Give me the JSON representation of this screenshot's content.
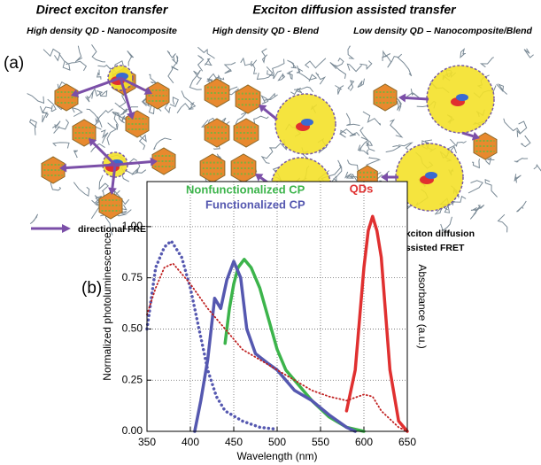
{
  "panel_a": {
    "label": "(a)",
    "headers": {
      "direct": "Direct exciton transfer",
      "diffusion": "Exciton diffusion assisted transfer"
    },
    "subheaders": [
      "High density QD - Nanocomposite",
      "High density QD - Blend",
      "Low density QD – Nanocomposite/Blend"
    ],
    "legend": {
      "directional": "directional FRET",
      "diffusion_line1": "exciton diffusion",
      "diffusion_line2": "assisted FRET"
    }
  },
  "panel_b": {
    "label": "(b)"
  },
  "chart_data": {
    "type": "line",
    "x_label": "Wavelength (nm)",
    "y_label": "Normalized photoluminescence",
    "y2_label": "Absorbance (a.u.)",
    "xlim": [
      350,
      650
    ],
    "xticks": [
      350,
      400,
      450,
      500,
      550,
      600,
      650
    ],
    "ylim": [
      0,
      1.22
    ],
    "yticks": [
      {
        "value": 0,
        "label": "0.00"
      },
      {
        "value": 0.25,
        "label": "0.25"
      },
      {
        "value": 0.5,
        "label": "0.50"
      },
      {
        "value": 0.75,
        "label": "0.75"
      },
      {
        "value": 1,
        "label": "1.00"
      }
    ],
    "grid": true,
    "series": [
      {
        "name": "Nonfunctionalized CP",
        "color": "#3cb44b",
        "style": "solid",
        "x": [
          440,
          445,
          450,
          455,
          462,
          470,
          480,
          490,
          500,
          510,
          520,
          540,
          560,
          580,
          600
        ],
        "values": [
          0.43,
          0.6,
          0.72,
          0.8,
          0.84,
          0.8,
          0.7,
          0.55,
          0.4,
          0.3,
          0.25,
          0.15,
          0.07,
          0.02,
          0
        ]
      },
      {
        "name": "Functionalized CP",
        "color": "#5558b0",
        "style": "solid",
        "x": [
          405,
          412,
          420,
          428,
          435,
          442,
          450,
          458,
          465,
          475,
          490,
          500,
          520,
          540,
          560,
          580,
          590
        ],
        "values": [
          0,
          0.15,
          0.35,
          0.65,
          0.6,
          0.74,
          0.83,
          0.75,
          0.5,
          0.38,
          0.33,
          0.3,
          0.2,
          0.15,
          0.08,
          0.02,
          0
        ]
      },
      {
        "name": "QDs",
        "color": "#e03030",
        "style": "solid",
        "x": [
          580,
          590,
          595,
          600,
          605,
          610,
          615,
          620,
          630,
          640,
          650
        ],
        "values": [
          0.1,
          0.3,
          0.55,
          0.8,
          0.98,
          1.05,
          0.98,
          0.85,
          0.3,
          0.05,
          0
        ]
      },
      {
        "color": "#5558b0",
        "style": "dotted",
        "x": [
          350,
          360,
          370,
          378,
          390,
          400,
          410,
          420,
          430,
          440,
          460,
          480,
          500
        ],
        "values": [
          0.5,
          0.8,
          0.9,
          0.93,
          0.85,
          0.7,
          0.5,
          0.3,
          0.17,
          0.1,
          0.05,
          0.02,
          0.01
        ]
      },
      {
        "color": "#c02020",
        "style": "dotted",
        "x": [
          350,
          360,
          370,
          380,
          400,
          420,
          440,
          460,
          480,
          500,
          520,
          540,
          560,
          580,
          600,
          610,
          620,
          640,
          650
        ],
        "values": [
          0.57,
          0.7,
          0.8,
          0.82,
          0.72,
          0.6,
          0.5,
          0.4,
          0.35,
          0.3,
          0.25,
          0.2,
          0.17,
          0.15,
          0.18,
          0.17,
          0.1,
          0.02,
          0
        ]
      }
    ]
  }
}
